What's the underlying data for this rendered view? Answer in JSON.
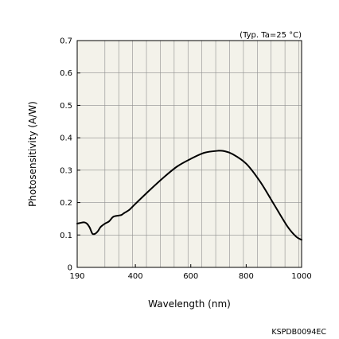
{
  "chart_data": {
    "type": "line",
    "title": "",
    "condition": "(Typ. Ta=25 °C)",
    "xlabel": "Wavelength (nm)",
    "ylabel": "Photosensitivity  (A/W)",
    "xlim": [
      190,
      1000
    ],
    "ylim": [
      0,
      0.7
    ],
    "x_ticks": [
      190,
      400,
      600,
      800,
      1000
    ],
    "y_ticks": [
      0,
      0.1,
      0.2,
      0.3,
      0.4,
      0.5,
      0.6,
      0.7
    ],
    "x_gridlines": [
      290,
      340,
      390,
      440,
      490,
      540,
      590,
      640,
      690,
      740,
      790,
      840,
      890,
      940,
      990
    ],
    "grid": true,
    "background_color": "#f3f2ea",
    "line_color": "#000000",
    "series": [
      {
        "x": [
          190,
          200,
          215,
          225,
          235,
          245,
          255,
          265,
          275,
          290,
          305,
          320,
          340,
          350,
          360,
          370,
          380,
          400,
          450,
          500,
          550,
          600,
          650,
          700,
          720,
          750,
          800,
          850,
          900,
          950,
          980,
          1000
        ],
        "y": [
          0.135,
          0.137,
          0.139,
          0.135,
          0.123,
          0.104,
          0.104,
          0.112,
          0.125,
          0.135,
          0.142,
          0.156,
          0.16,
          0.162,
          0.168,
          0.173,
          0.179,
          0.196,
          0.237,
          0.276,
          0.311,
          0.335,
          0.354,
          0.36,
          0.359,
          0.35,
          0.32,
          0.265,
          0.195,
          0.125,
          0.095,
          0.085
        ]
      }
    ],
    "figure_code": "KSPDB0094EC"
  }
}
